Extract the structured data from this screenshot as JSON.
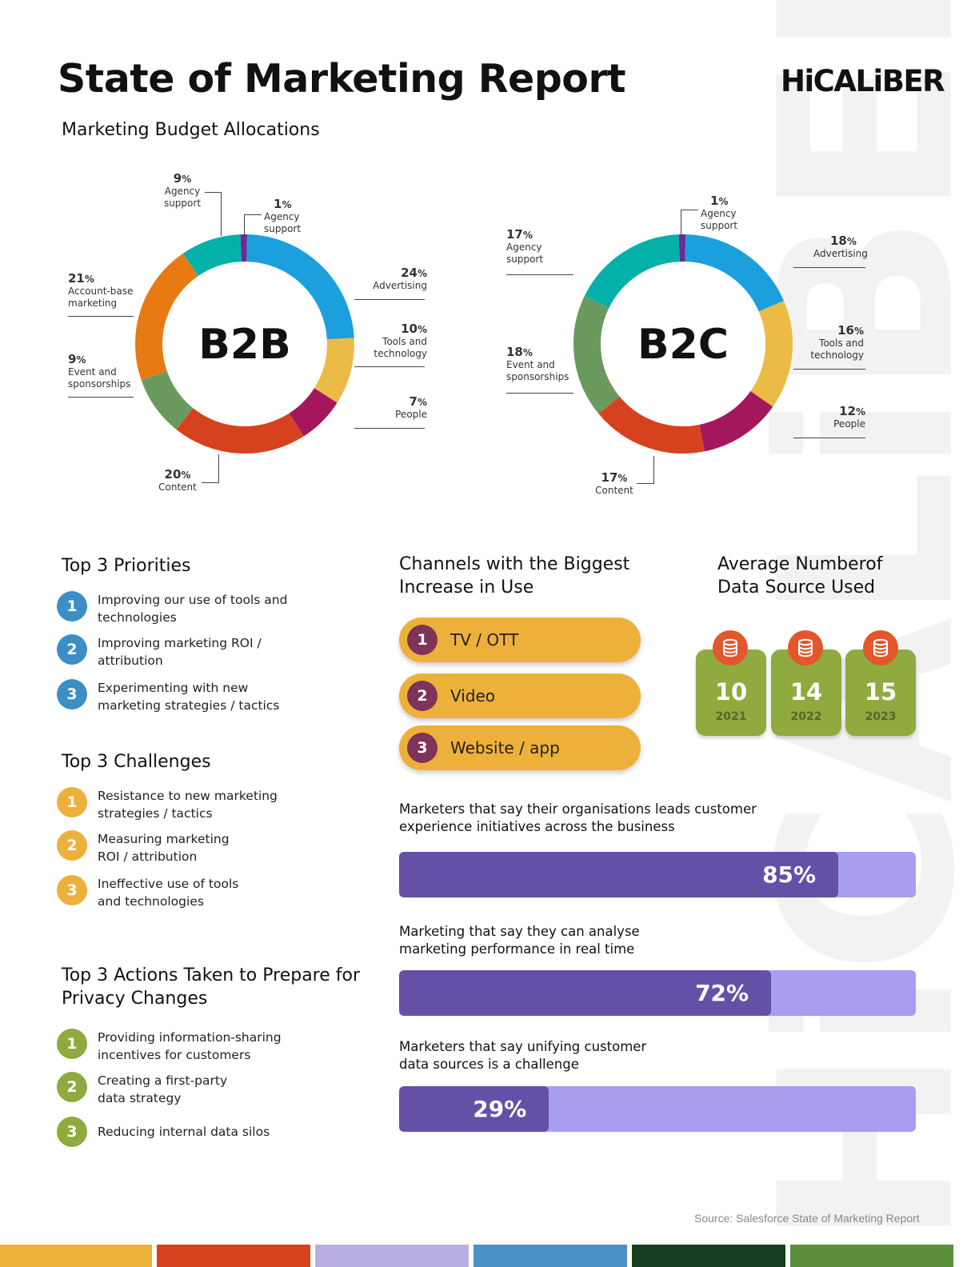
{
  "header": {
    "title": "State of Marketing Report",
    "logo_text": "HiCALiBER",
    "watermark_text": "HiCALiBER",
    "section_title": "Marketing Budget Allocations"
  },
  "colors": {
    "advertising": "#1ba0dd",
    "tools_and_technology": "#ebbb45",
    "people": "#a5175d",
    "content": "#d5421d",
    "event_and_sponsorships": "#6a9a5e",
    "account_base_marketing": "#e77a13",
    "agency_support_teal": "#04b1a9",
    "agency_support_purple": "#6f2a93",
    "priorities_badge": "#3c8fc4",
    "challenges_badge": "#edb03b",
    "actions_badge": "#8faa3e",
    "channel_pill": "#edb03b",
    "channel_badge": "#7e3358",
    "bar_fill": "#6550a8",
    "bar_track": "#a99df0",
    "data_card": "#8faa3e",
    "data_icon": "#e2572b"
  },
  "chart_data": [
    {
      "type": "pie",
      "title": "B2B",
      "series": [
        {
          "name": "Agency support",
          "value": 1,
          "pct": "1",
          "color": "#6f2a93"
        },
        {
          "name": "Advertising",
          "value": 24,
          "pct": "24",
          "color": "#1ba0dd"
        },
        {
          "name": "Tools and technology",
          "value": 10,
          "pct": "10",
          "color": "#ebbb45"
        },
        {
          "name": "People",
          "value": 7,
          "pct": "7",
          "color": "#a5175d"
        },
        {
          "name": "Content",
          "value": 20,
          "pct": "20",
          "color": "#d5421d"
        },
        {
          "name": "Event and sponsorships",
          "value": 9,
          "pct": "9",
          "color": "#6a9a5e"
        },
        {
          "name": "Account-base marketing",
          "value": 21,
          "pct": "21",
          "color": "#e77a13"
        },
        {
          "name": "Agency support",
          "value": 9,
          "pct": "9",
          "color": "#04b1a9"
        }
      ]
    },
    {
      "type": "pie",
      "title": "B2C",
      "series": [
        {
          "name": "Agency support",
          "value": 1,
          "pct": "1",
          "color": "#6f2a93"
        },
        {
          "name": "Advertising",
          "value": 18,
          "pct": "18",
          "color": "#1ba0dd"
        },
        {
          "name": "Tools and technology",
          "value": 16,
          "pct": "16",
          "color": "#ebbb45"
        },
        {
          "name": "People",
          "value": 12,
          "pct": "12",
          "color": "#a5175d"
        },
        {
          "name": "Content",
          "value": 17,
          "pct": "17",
          "color": "#d5421d"
        },
        {
          "name": "Event and sponsorships",
          "value": 18,
          "pct": "18",
          "color": "#6a9a5e"
        },
        {
          "name": "Agency support",
          "value": 17,
          "pct": "17",
          "color": "#04b1a9"
        }
      ]
    },
    {
      "type": "bar",
      "title": "Average Numberof Data Source Used",
      "categories": [
        "2021",
        "2022",
        "2023"
      ],
      "values": [
        10,
        14,
        15
      ]
    },
    {
      "type": "bar",
      "categories": [
        "Marketers that say their organisations leads customer experience initiatives across the business",
        "Marketing that say they can analyse marketing performance in real time",
        "Marketers that say unifying customer data sources is a challenge"
      ],
      "values": [
        85,
        72,
        29
      ],
      "ylim": [
        0,
        100
      ]
    }
  ],
  "percent_sign": "%",
  "b2b_labels": {
    "center": "B2B",
    "agency_teal": {
      "pct": "9",
      "label": "Agency support"
    },
    "agency_purple": {
      "pct": "1",
      "label": "Agency support"
    },
    "advertising": {
      "pct": "24",
      "label": "Advertising"
    },
    "tools": {
      "pct": "10",
      "label": "Tools and technology"
    },
    "people": {
      "pct": "7",
      "label": "People"
    },
    "content": {
      "pct": "20",
      "label": "Content"
    },
    "event": {
      "pct": "9",
      "label": "Event and sponsorships"
    },
    "abm": {
      "pct": "21",
      "label": "Account-base marketing"
    }
  },
  "b2c_labels": {
    "center": "B2C",
    "agency_teal": {
      "pct": "17",
      "label": "Agency support"
    },
    "agency_purple": {
      "pct": "1",
      "label": "Agency support"
    },
    "advertising": {
      "pct": "18",
      "label": "Advertising"
    },
    "tools": {
      "pct": "16",
      "label": "Tools and technology"
    },
    "people": {
      "pct": "12",
      "label": "People"
    },
    "content": {
      "pct": "17",
      "label": "Content"
    },
    "event": {
      "pct": "18",
      "label": "Event and sponsorships"
    }
  },
  "priorities": {
    "title": "Top 3 Priorities",
    "items": [
      {
        "num": "1",
        "text": "Improving our use of tools and technologies"
      },
      {
        "num": "2",
        "text": "Improving marketing ROI / attribution"
      },
      {
        "num": "3",
        "text": "Experimenting with new marketing strategies / tactics"
      }
    ]
  },
  "challenges": {
    "title": "Top 3 Challenges",
    "items": [
      {
        "num": "1",
        "text": "Resistance to new marketing strategies / tactics"
      },
      {
        "num": "2",
        "text": "Measuring marketing ROI / attribution"
      },
      {
        "num": "3",
        "text": "Ineffective use of tools and technologies"
      }
    ]
  },
  "actions": {
    "title": "Top 3 Actions Taken to Prepare for Privacy Changes",
    "items": [
      {
        "num": "1",
        "text": "Providing information-sharing incentives for customers"
      },
      {
        "num": "2",
        "text": "Creating a first-party data strategy"
      },
      {
        "num": "3",
        "text": "Reducing internal data silos"
      }
    ]
  },
  "channels": {
    "title": "Channels with the Biggest Increase in Use",
    "items": [
      {
        "num": "1",
        "label": "TV / OTT"
      },
      {
        "num": "2",
        "label": "Video"
      },
      {
        "num": "3",
        "label": "Website / app"
      }
    ]
  },
  "data_sources": {
    "title": "Average Numberof Data Source Used",
    "icon": "database-icon",
    "cards": [
      {
        "value": "10",
        "year": "2021"
      },
      {
        "value": "14",
        "year": "2022"
      },
      {
        "value": "15",
        "year": "2023"
      }
    ]
  },
  "stats": [
    {
      "title": "Marketers that say their organisations leads customer experience initiatives across the business",
      "value": 85,
      "label": "85%"
    },
    {
      "title": "Marketing that say they can analyse marketing performance in real time",
      "value": 72,
      "label": "72%"
    },
    {
      "title": "Marketers that say unifying customer data sources is a challenge",
      "value": 29,
      "label": "29%"
    }
  ],
  "source": "Source: Salesforce State of Marketing Report",
  "footer_stripes": [
    "#edb03b",
    "#d5421d",
    "#b9aee4",
    "#4a92c8",
    "#173d22",
    "#5b8f3a"
  ]
}
